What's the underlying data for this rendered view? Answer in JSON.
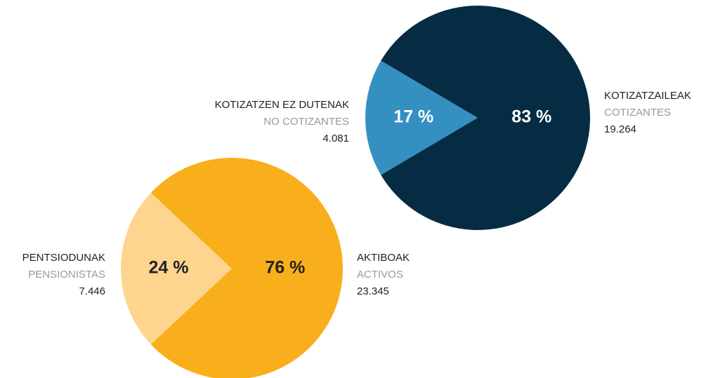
{
  "chart_data": [
    {
      "type": "pie",
      "categories": [
        "PENTSIODUNAK",
        "AKTIBOAK"
      ],
      "subcategories": [
        "PENSIONISTAS",
        "ACTIVOS"
      ],
      "count_labels": [
        "7.446",
        "23.345"
      ],
      "values": [
        24,
        76
      ],
      "value_labels": [
        "24 %",
        "76 %"
      ],
      "colors": [
        "#fdd58e",
        "#f9ae1b"
      ],
      "label_color": "#222222"
    },
    {
      "type": "pie",
      "categories": [
        "KOTIZATZEN EZ DUTENAK",
        "KOTIZATZAILEAK"
      ],
      "subcategories": [
        "NO COTIZANTES",
        "COTIZANTES"
      ],
      "count_labels": [
        "4.081",
        "19.264"
      ],
      "values": [
        17,
        83
      ],
      "value_labels": [
        "17 %",
        "83 %"
      ],
      "colors": [
        "#3490c1",
        "#052c42"
      ],
      "label_color": "#ffffff"
    }
  ]
}
